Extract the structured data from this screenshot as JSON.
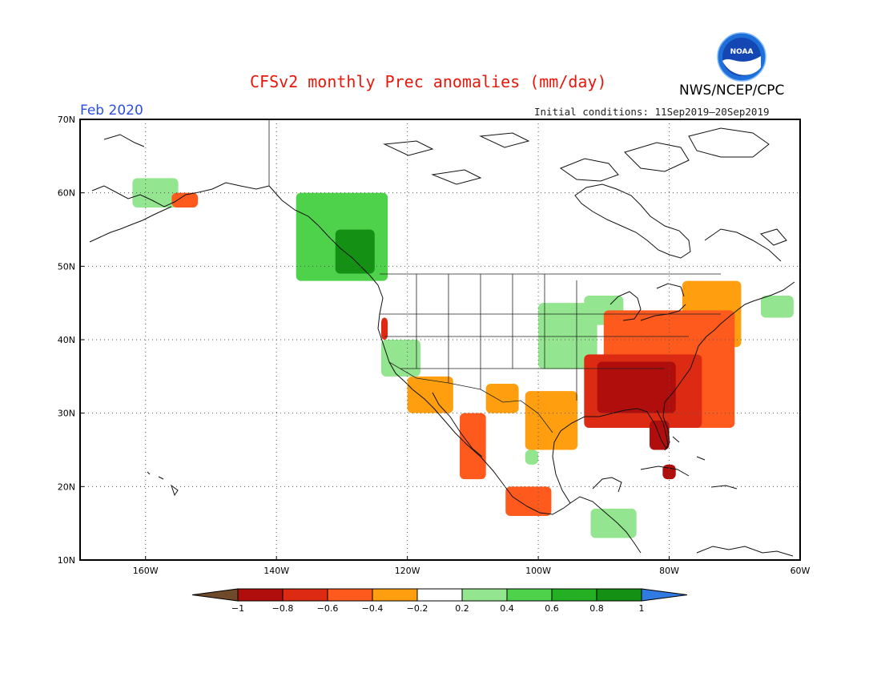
{
  "header": {
    "title": "CFSv2 monthly Prec anomalies (mm/day)",
    "month": "Feb 2020",
    "initial_conditions": "Initial conditions: 11Sep2019–20Sep2019",
    "agency": "NWS/NCEP/CPC",
    "logo_text": "NOAA"
  },
  "axes": {
    "lat_labels": [
      "70N",
      "60N",
      "50N",
      "40N",
      "30N",
      "20N",
      "10N"
    ],
    "lon_labels": [
      "160W",
      "140W",
      "120W",
      "100W",
      "80W",
      "60W"
    ],
    "lat_range": [
      10,
      70
    ],
    "lon_range": [
      -170,
      -60
    ],
    "grid": "dotted"
  },
  "colorbar": {
    "labels": [
      "−1",
      "−0.8",
      "−0.6",
      "−0.4",
      "−0.2",
      "0.2",
      "0.4",
      "0.6",
      "0.8",
      "1"
    ],
    "colors": [
      "#6e4a2b",
      "#b00d0d",
      "#dd2a12",
      "#ff5a1e",
      "#ff9f0f",
      "#ffffff",
      "#93e68f",
      "#4fd24b",
      "#25b024",
      "#149114",
      "#2f7be2"
    ]
  },
  "colors": {
    "dry_extreme": "#b00d0d",
    "dry_strong": "#dd2a12",
    "dry_moderate": "#ff5a1e",
    "dry_weak": "#ff9f0f",
    "wet_weak": "#93e68f",
    "wet_moderate": "#4fd24b",
    "wet_strong": "#25b024",
    "wet_extreme": "#149114"
  },
  "anomaly_regions": [
    {
      "name": "southeast-us-dry",
      "level": -0.8,
      "lon": [
        -91,
        -79
      ],
      "lat": [
        30,
        37
      ]
    },
    {
      "name": "southeast-us-strong-dry",
      "level": -0.6,
      "lon": [
        -93,
        -75
      ],
      "lat": [
        28,
        38
      ]
    },
    {
      "name": "eastern-us-dry",
      "level": -0.4,
      "lon": [
        -90,
        -70
      ],
      "lat": [
        28,
        44
      ]
    },
    {
      "name": "northeast-us-dry",
      "level": -0.2,
      "lon": [
        -78,
        -69
      ],
      "lat": [
        39,
        48
      ]
    },
    {
      "name": "florida-dry",
      "level": -0.8,
      "lon": [
        -83,
        -80
      ],
      "lat": [
        25,
        29
      ]
    },
    {
      "name": "texas-dry",
      "level": -0.2,
      "lon": [
        -102,
        -94
      ],
      "lat": [
        25,
        33
      ]
    },
    {
      "name": "new-mexico-dry",
      "level": -0.2,
      "lon": [
        -108,
        -103
      ],
      "lat": [
        30,
        34
      ]
    },
    {
      "name": "baja-dry",
      "level": -0.4,
      "lon": [
        -112,
        -108
      ],
      "lat": [
        21,
        30
      ]
    },
    {
      "name": "southern-california-dry",
      "level": -0.2,
      "lon": [
        -120,
        -113
      ],
      "lat": [
        30,
        35
      ]
    },
    {
      "name": "northern-california-dry",
      "level": -0.6,
      "lon": [
        -124,
        -123
      ],
      "lat": [
        40,
        43
      ]
    },
    {
      "name": "southern-mexico-dry",
      "level": -0.4,
      "lon": [
        -105,
        -98
      ],
      "lat": [
        16,
        20
      ]
    },
    {
      "name": "cuba-dry",
      "level": -0.8,
      "lon": [
        -81,
        -79
      ],
      "lat": [
        21,
        23
      ]
    },
    {
      "name": "alaska-peninsula-dry",
      "level": -0.4,
      "lon": [
        -156,
        -152
      ],
      "lat": [
        58,
        60
      ]
    },
    {
      "name": "pacific-northwest-wet",
      "level": 0.4,
      "lon": [
        -137,
        -123
      ],
      "lat": [
        48,
        60
      ]
    },
    {
      "name": "bc-coast-wet",
      "level": 0.8,
      "lon": [
        -131,
        -125
      ],
      "lat": [
        49,
        55
      ]
    },
    {
      "name": "northern-plains-wet",
      "level": 0.2,
      "lon": [
        -100,
        -91
      ],
      "lat": [
        36,
        45
      ]
    },
    {
      "name": "great-lakes-wet",
      "level": 0.2,
      "lon": [
        -93,
        -87
      ],
      "lat": [
        42,
        46
      ]
    },
    {
      "name": "california-wet",
      "level": 0.2,
      "lon": [
        -124,
        -118
      ],
      "lat": [
        35,
        40
      ]
    },
    {
      "name": "central-america-wet",
      "level": 0.2,
      "lon": [
        -92,
        -85
      ],
      "lat": [
        13,
        17
      ]
    },
    {
      "name": "mexico-interior-wet",
      "level": 0.2,
      "lon": [
        -102,
        -100
      ],
      "lat": [
        23,
        25
      ]
    },
    {
      "name": "southwest-alaska-wet",
      "level": 0.2,
      "lon": [
        -162,
        -155
      ],
      "lat": [
        58,
        62
      ]
    },
    {
      "name": "nova-scotia-wet",
      "level": 0.2,
      "lon": [
        -66,
        -61
      ],
      "lat": [
        43,
        46
      ]
    }
  ]
}
